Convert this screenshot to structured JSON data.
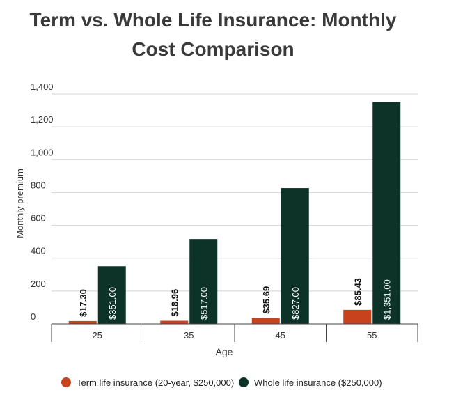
{
  "chart_data": {
    "type": "bar",
    "title": "Term vs. Whole Life Insurance: Monthly Cost Comparison",
    "title_lines": [
      "Term vs. Whole Life Insurance: Monthly",
      "Cost Comparison"
    ],
    "xlabel": "Age",
    "ylabel": "Monthly premium",
    "categories": [
      "25",
      "35",
      "45",
      "55"
    ],
    "ylim": [
      0,
      1400
    ],
    "yticks": [
      0,
      200,
      400,
      600,
      800,
      1000,
      1200,
      1400
    ],
    "ytick_labels": [
      "0",
      "200",
      "400",
      "600",
      "800",
      "1,000",
      "1,200",
      "1,400"
    ],
    "grid": true,
    "legend_position": "bottom",
    "series": [
      {
        "name": "Term life insurance (20-year, $250,000)",
        "color": "#c8421e",
        "values": [
          17.3,
          18.96,
          35.69,
          85.43
        ],
        "labels": [
          "$17.30",
          "$18.96",
          "$35.69",
          "$85.43"
        ]
      },
      {
        "name": "Whole life insurance ($250,000)",
        "color": "#0d3329",
        "values": [
          351.0,
          517.0,
          827.0,
          1351.0
        ],
        "labels": [
          "$351.00",
          "$517.00",
          "$827.00",
          "$1,351.00"
        ]
      }
    ]
  }
}
